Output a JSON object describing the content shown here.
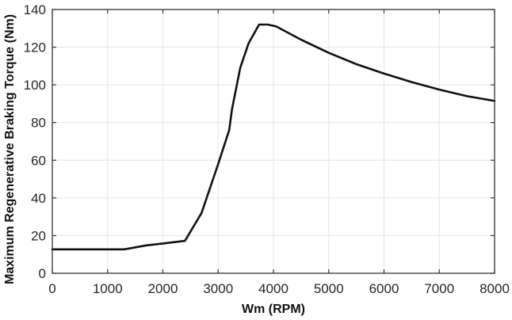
{
  "chart_data": {
    "type": "line",
    "title": "",
    "xlabel": "Wm (RPM)",
    "ylabel": "Maximum Regenerative Braking Torque (Nm)",
    "xlim": [
      0,
      8000
    ],
    "ylim": [
      0,
      140
    ],
    "xticks": [
      0,
      1000,
      2000,
      3000,
      4000,
      5000,
      6000,
      7000,
      8000
    ],
    "yticks": [
      0,
      20,
      40,
      60,
      80,
      100,
      120,
      140
    ],
    "grid": true,
    "legend": null,
    "series": [
      {
        "name": "Maximum Regenerative Braking Torque",
        "color": "#111111",
        "x": [
          0,
          1300,
          1700,
          2000,
          2400,
          2700,
          3000,
          3200,
          3250,
          3400,
          3550,
          3740,
          3900,
          4050,
          4500,
          5000,
          5500,
          6000,
          6500,
          7000,
          7500,
          8000
        ],
        "y": [
          12.7,
          12.7,
          14.8,
          15.8,
          17.2,
          32,
          58,
          76,
          87,
          109,
          122,
          132,
          132,
          131,
          124,
          117,
          111,
          106,
          101.5,
          97.5,
          94,
          91.5
        ]
      }
    ]
  }
}
